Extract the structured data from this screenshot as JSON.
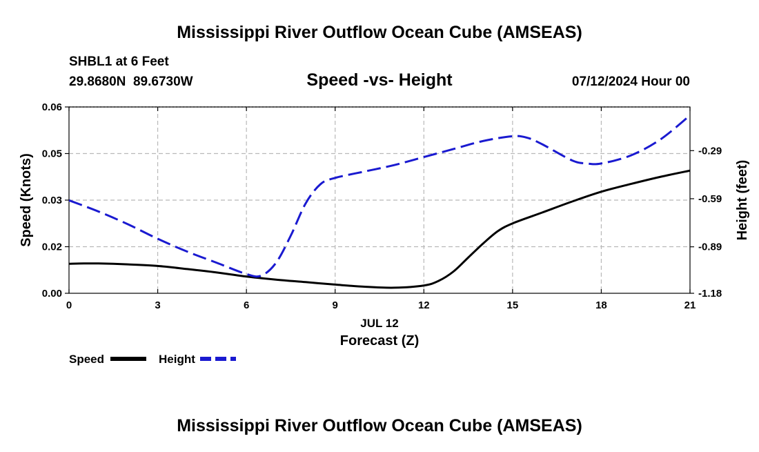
{
  "chart_data": {
    "type": "line",
    "title": "Mississippi River Outflow Ocean Cube (AMSEAS)",
    "subtitle": "Speed -vs- Height",
    "station": "SHBL1 at 6 Feet",
    "coords": "29.8680N  89.6730W",
    "date_label": "07/12/2024 Hour 00",
    "xlabel": "Forecast (Z)",
    "x_date": "JUL 12",
    "ylabel_left": "Speed (Knots)",
    "ylabel_right": "Height (feet)",
    "xlim": [
      0,
      21
    ],
    "ylim_left": [
      0,
      0.06
    ],
    "ylim_right": [
      -1.18,
      -0.0175
    ],
    "x_ticks": [
      0,
      3,
      6,
      9,
      12,
      15,
      18,
      21
    ],
    "x_tick_labels": [
      "0",
      "3",
      "6",
      "9",
      "12",
      "15",
      "18",
      "21"
    ],
    "y_ticks_left": [
      0,
      0.015,
      0.03,
      0.045,
      0.06
    ],
    "y_tick_labels_left": [
      "0.00",
      "0.02",
      "0.03",
      "0.05",
      "0.06"
    ],
    "y_ticks_right": [
      -1.18,
      -0.89,
      -0.59,
      -0.29
    ],
    "y_tick_labels_right": [
      "-1.18",
      "-0.89",
      "-0.59",
      "-0.29"
    ],
    "grid": true,
    "series": [
      {
        "name": "Speed",
        "axis": "left",
        "color": "#000000",
        "style": "solid",
        "x": [
          0,
          0.5,
          1,
          2,
          3,
          4,
          5,
          6,
          7,
          8,
          9,
          10,
          11,
          12,
          12.5,
          13,
          13.5,
          14,
          14.5,
          15,
          16,
          17,
          18,
          19,
          20,
          21
        ],
        "y": [
          0.0095,
          0.0096,
          0.0096,
          0.0093,
          0.0088,
          0.0078,
          0.0067,
          0.0054,
          0.0044,
          0.0036,
          0.0028,
          0.0021,
          0.0018,
          0.0025,
          0.004,
          0.007,
          0.0115,
          0.016,
          0.02,
          0.0225,
          0.026,
          0.0295,
          0.0327,
          0.0352,
          0.0375,
          0.0395
        ]
      },
      {
        "name": "Height",
        "axis": "right",
        "color": "#1a1ad0",
        "style": "dashed",
        "x": [
          0,
          1,
          2,
          3,
          4,
          5,
          6,
          6.5,
          7,
          7.5,
          8,
          8.5,
          9,
          10,
          11,
          12,
          13,
          14,
          15,
          15.5,
          16,
          17,
          17.5,
          18,
          19,
          20,
          21
        ],
        "y": [
          -0.6,
          -0.67,
          -0.75,
          -0.84,
          -0.92,
          -0.99,
          -1.06,
          -1.07,
          -0.99,
          -0.82,
          -0.62,
          -0.5,
          -0.46,
          -0.42,
          -0.38,
          -0.33,
          -0.28,
          -0.23,
          -0.2,
          -0.21,
          -0.25,
          -0.35,
          -0.37,
          -0.37,
          -0.32,
          -0.22,
          -0.07
        ]
      }
    ],
    "legend": {
      "placement": "bottom-left",
      "entries": [
        "Speed",
        "Height"
      ]
    },
    "footer_title": "Mississippi River Outflow Ocean Cube (AMSEAS)"
  }
}
